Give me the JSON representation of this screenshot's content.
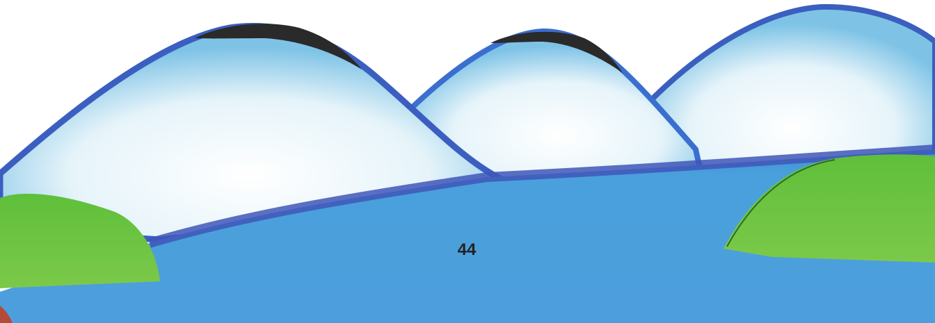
{
  "page_number": "44"
}
